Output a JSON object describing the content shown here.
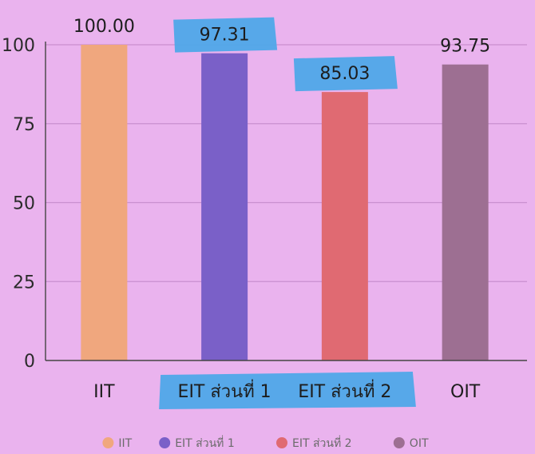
{
  "chart_data": {
    "type": "bar",
    "categories": [
      "IIT",
      "EIT ส่วนที่ 1",
      "EIT ส่วนที่ 2",
      "OIT"
    ],
    "values": [
      100.0,
      97.31,
      85.03,
      93.75
    ],
    "value_labels": [
      "100.00",
      "97.31",
      "85.03",
      "93.75"
    ],
    "colors": [
      "#f0a77e",
      "#7a60c8",
      "#e06a72",
      "#9d6f92"
    ],
    "highlight_color": "#4fa8e8",
    "highlighted_value_labels": [
      1,
      2
    ],
    "highlighted_categories": [
      1,
      2
    ],
    "ylim": [
      0,
      100
    ],
    "yticks": [
      0,
      25,
      50,
      75,
      100
    ],
    "grid": true,
    "legend_position": "bottom",
    "legend": [
      "IIT",
      "EIT ส่วนที่ 1",
      "EIT ส่วนที่ 2",
      "OIT"
    ]
  }
}
